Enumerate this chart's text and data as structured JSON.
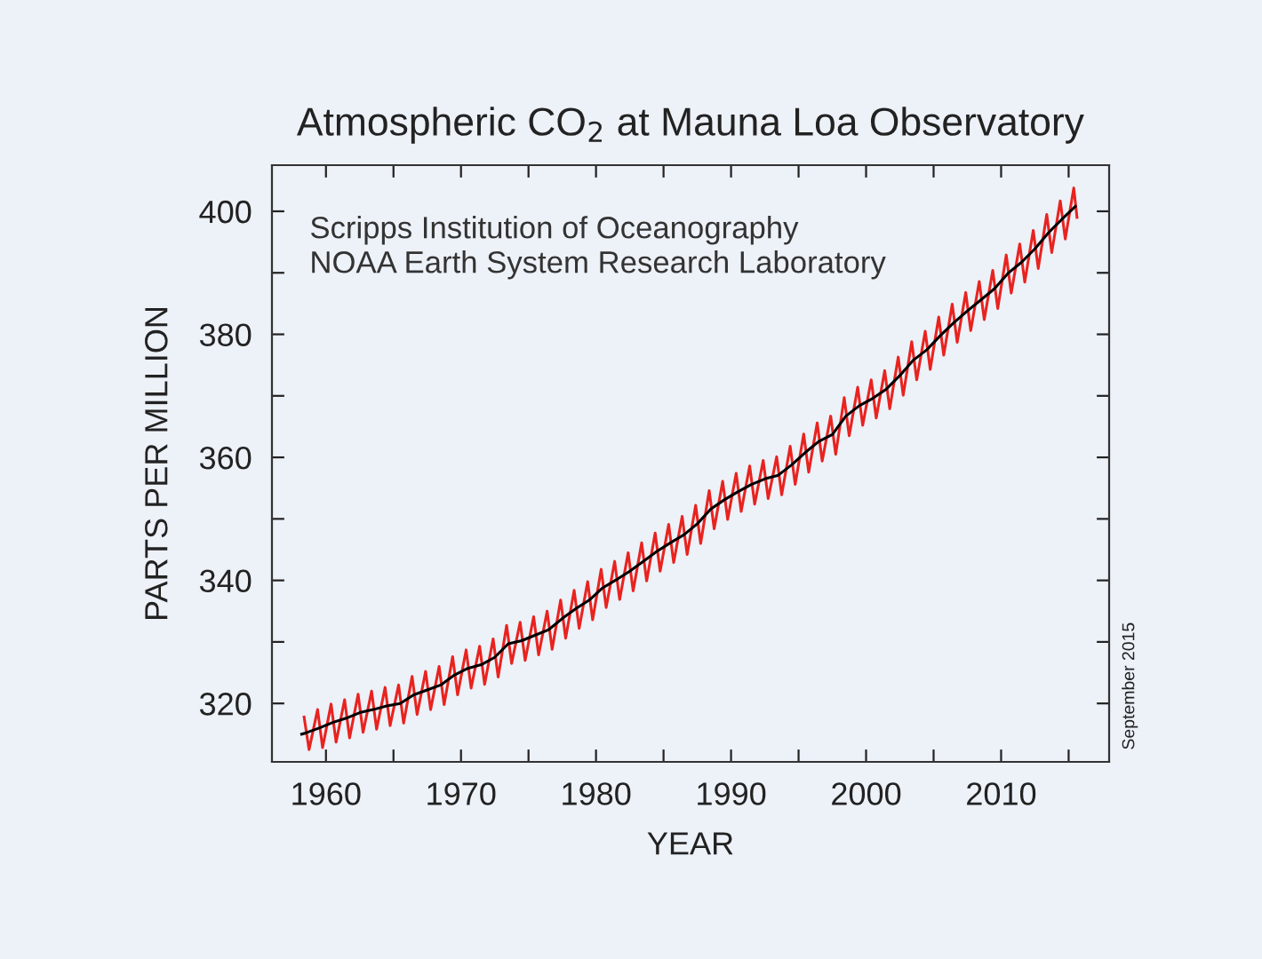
{
  "chart_data": {
    "type": "line",
    "title": "Atmospheric CO$_{2}$ at Mauna Loa Observatory",
    "xlabel": "YEAR",
    "ylabel": "PARTS PER MILLION",
    "annotations": [
      "Scripps Institution of Oceanography",
      "NOAA Earth System Research Laboratory",
      "September 2015"
    ],
    "xlim": [
      1956,
      2018
    ],
    "ylim": [
      310.5,
      407.5
    ],
    "xticks": [
      1960,
      {
        "value": 1965,
        "label": null
      },
      1970,
      {
        "value": 1975,
        "label": null
      },
      1980,
      {
        "value": 1985,
        "label": null
      },
      1990,
      {
        "value": 1995,
        "label": null
      },
      2000,
      {
        "value": 2005,
        "label": null
      },
      2010,
      {
        "value": 2015,
        "label": null
      }
    ],
    "yticks": [
      320,
      {
        "value": 330,
        "label": null
      },
      340,
      {
        "value": 350,
        "label": null
      },
      360,
      {
        "value": 370,
        "label": null
      },
      380,
      {
        "value": 390,
        "label": null
      },
      400
    ],
    "grid": false,
    "marker": "none",
    "line_style": "solid",
    "series": [
      {
        "color": "#e8231f",
        "x": [
          1958.38,
          1958.75,
          1959.38,
          1959.75,
          1960.38,
          1960.75,
          1961.38,
          1961.75,
          1962.38,
          1962.75,
          1963.38,
          1963.75,
          1964.38,
          1964.75,
          1965.38,
          1965.75,
          1966.38,
          1966.75,
          1967.38,
          1967.75,
          1968.38,
          1968.75,
          1969.38,
          1969.75,
          1970.38,
          1970.75,
          1971.38,
          1971.75,
          1972.38,
          1972.75,
          1973.38,
          1973.75,
          1974.38,
          1974.75,
          1975.38,
          1975.75,
          1976.38,
          1976.75,
          1977.38,
          1977.75,
          1978.38,
          1978.75,
          1979.38,
          1979.75,
          1980.38,
          1980.75,
          1981.38,
          1981.75,
          1982.38,
          1982.75,
          1983.38,
          1983.75,
          1984.38,
          1984.75,
          1985.38,
          1985.75,
          1986.38,
          1986.75,
          1987.38,
          1987.75,
          1988.38,
          1988.75,
          1989.38,
          1989.75,
          1990.38,
          1990.75,
          1991.38,
          1991.75,
          1992.38,
          1992.75,
          1993.38,
          1993.75,
          1994.38,
          1994.75,
          1995.38,
          1995.75,
          1996.38,
          1996.75,
          1997.38,
          1997.75,
          1998.38,
          1998.75,
          1999.38,
          1999.75,
          2000.38,
          2000.75,
          2001.38,
          2001.75,
          2002.38,
          2002.75,
          2003.38,
          2003.75,
          2004.38,
          2004.75,
          2005.38,
          2005.75,
          2006.38,
          2006.75,
          2007.38,
          2007.75,
          2008.38,
          2008.75,
          2009.38,
          2009.75,
          2010.38,
          2010.75,
          2011.38,
          2011.75,
          2012.38,
          2012.75,
          2013.38,
          2013.75,
          2014.38,
          2014.75,
          2015.38,
          2015.62
        ],
        "values": [
          317.8,
          312.5,
          319.0,
          312.8,
          319.9,
          313.7,
          320.6,
          314.4,
          321.5,
          315.3,
          322.0,
          315.8,
          322.6,
          316.4,
          323.0,
          316.8,
          324.4,
          318.2,
          325.2,
          319.0,
          326.0,
          319.8,
          327.6,
          321.4,
          328.7,
          322.5,
          329.3,
          323.1,
          330.5,
          324.3,
          332.7,
          326.5,
          333.2,
          327.0,
          334.1,
          327.9,
          335.0,
          328.8,
          336.8,
          330.6,
          338.4,
          332.2,
          339.8,
          333.6,
          341.8,
          335.6,
          343.1,
          336.9,
          344.5,
          338.3,
          346.1,
          339.9,
          347.7,
          341.5,
          349.1,
          342.9,
          350.4,
          344.2,
          352.2,
          346.0,
          354.6,
          348.4,
          356.1,
          349.9,
          357.4,
          351.2,
          358.6,
          352.4,
          359.5,
          353.3,
          360.1,
          353.9,
          361.8,
          355.6,
          363.8,
          357.6,
          365.6,
          359.4,
          366.7,
          360.5,
          369.7,
          363.5,
          371.4,
          365.2,
          372.6,
          366.4,
          374.1,
          367.9,
          376.3,
          370.1,
          378.8,
          372.6,
          380.5,
          374.3,
          382.8,
          376.6,
          384.9,
          378.7,
          386.8,
          380.6,
          388.6,
          382.4,
          390.4,
          384.2,
          392.9,
          386.7,
          394.7,
          388.5,
          396.9,
          390.7,
          399.5,
          393.3,
          401.7,
          395.5,
          403.8,
          399.0
        ]
      },
      {
        "color": "#000000",
        "x": [
          1958.2,
          1958.5,
          1959.5,
          1960.5,
          1961.5,
          1962.5,
          1963.5,
          1964.5,
          1965.5,
          1966.5,
          1967.5,
          1968.5,
          1969.5,
          1970.5,
          1971.5,
          1972.5,
          1973.5,
          1974.5,
          1975.5,
          1976.5,
          1977.5,
          1978.5,
          1979.5,
          1980.5,
          1981.5,
          1982.5,
          1983.5,
          1984.5,
          1985.5,
          1986.5,
          1987.5,
          1988.5,
          1989.5,
          1990.5,
          1991.5,
          1992.5,
          1993.5,
          1994.5,
          1995.5,
          1996.5,
          1997.5,
          1998.5,
          1999.5,
          2000.5,
          2001.5,
          2002.5,
          2003.5,
          2004.5,
          2005.5,
          2006.5,
          2007.5,
          2008.5,
          2009.5,
          2010.5,
          2011.5,
          2012.5,
          2013.5,
          2014.5,
          2015.5
        ],
        "values": [
          315.0,
          315.2,
          316.0,
          316.9,
          317.6,
          318.5,
          319.0,
          319.6,
          320.0,
          321.4,
          322.2,
          323.0,
          324.6,
          325.7,
          326.3,
          327.5,
          329.7,
          330.2,
          331.1,
          332.0,
          333.8,
          335.4,
          336.8,
          338.8,
          340.1,
          341.5,
          343.1,
          344.7,
          346.1,
          347.4,
          349.2,
          351.6,
          353.1,
          354.4,
          355.6,
          356.5,
          357.1,
          358.8,
          360.8,
          362.6,
          363.7,
          366.7,
          368.4,
          369.6,
          371.1,
          373.3,
          375.8,
          377.5,
          379.8,
          381.9,
          383.8,
          385.6,
          387.4,
          389.9,
          391.7,
          393.9,
          396.5,
          398.7,
          400.8
        ]
      }
    ]
  }
}
